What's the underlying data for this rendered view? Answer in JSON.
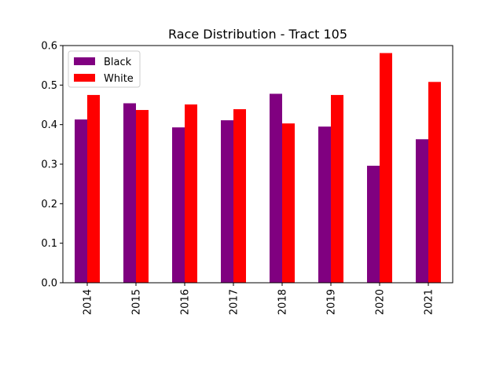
{
  "chart_data": {
    "type": "bar",
    "title": "Race Distribution - Tract 105",
    "xlabel": "",
    "ylabel": "",
    "categories": [
      "2014",
      "2015",
      "2016",
      "2017",
      "2018",
      "2019",
      "2020",
      "2021"
    ],
    "series": [
      {
        "name": "Black",
        "color": "#800080",
        "values": [
          0.413,
          0.454,
          0.393,
          0.411,
          0.478,
          0.395,
          0.296,
          0.363
        ]
      },
      {
        "name": "White",
        "color": "#ff0000",
        "values": [
          0.475,
          0.437,
          0.451,
          0.439,
          0.403,
          0.475,
          0.581,
          0.508
        ]
      }
    ],
    "ylim": [
      0,
      0.6
    ],
    "yticks": [
      "0.0",
      "0.1",
      "0.2",
      "0.3",
      "0.4",
      "0.5",
      "0.6"
    ],
    "grid": false,
    "legend_position": "top-left"
  }
}
